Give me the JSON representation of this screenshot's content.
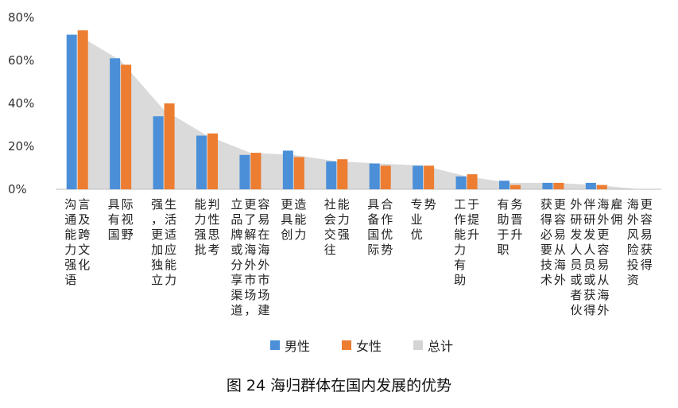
{
  "chart_data": {
    "type": "bar",
    "title": "图 24 海归群体在国内发展的优势",
    "ylim": [
      0,
      80
    ],
    "yticks": [
      "0%",
      "20%",
      "40%",
      "60%",
      "80%"
    ],
    "categories": [
      "沟通能力强语言及跨文化",
      "具有国际视野",
      "强，更加独立生活适应能力",
      "能力强批判性思考",
      "立品牌或分享渠道更了解海外市场，容易在海外市场建",
      "更具创造能力",
      "社会交往能力强",
      "具备国际合作优势",
      "专业优势",
      "工作能力有助于提升",
      "有助于职务晋升",
      "获得必要技术更容易从海外",
      "外研发人员或者伙伴研发人员或获得海外更容易从海外雇佣",
      "海外风险投资更容易获得"
    ],
    "series": [
      {
        "name": "男性",
        "color": "#4a8fd8",
        "values": [
          72,
          61,
          34,
          25,
          16,
          18,
          13,
          12,
          11,
          6,
          4,
          3,
          3,
          0
        ]
      },
      {
        "name": "女性",
        "color": "#ed7d31",
        "values": [
          74,
          58,
          40,
          26,
          17,
          15,
          14,
          11,
          11,
          7,
          2,
          3,
          2,
          0
        ]
      },
      {
        "name": "总计",
        "color": "#d4d4d4",
        "type": "area",
        "values": [
          72,
          60,
          37,
          25,
          17,
          16,
          13,
          12,
          11,
          6,
          3,
          3,
          2,
          0
        ]
      }
    ],
    "legend_position": "bottom"
  }
}
